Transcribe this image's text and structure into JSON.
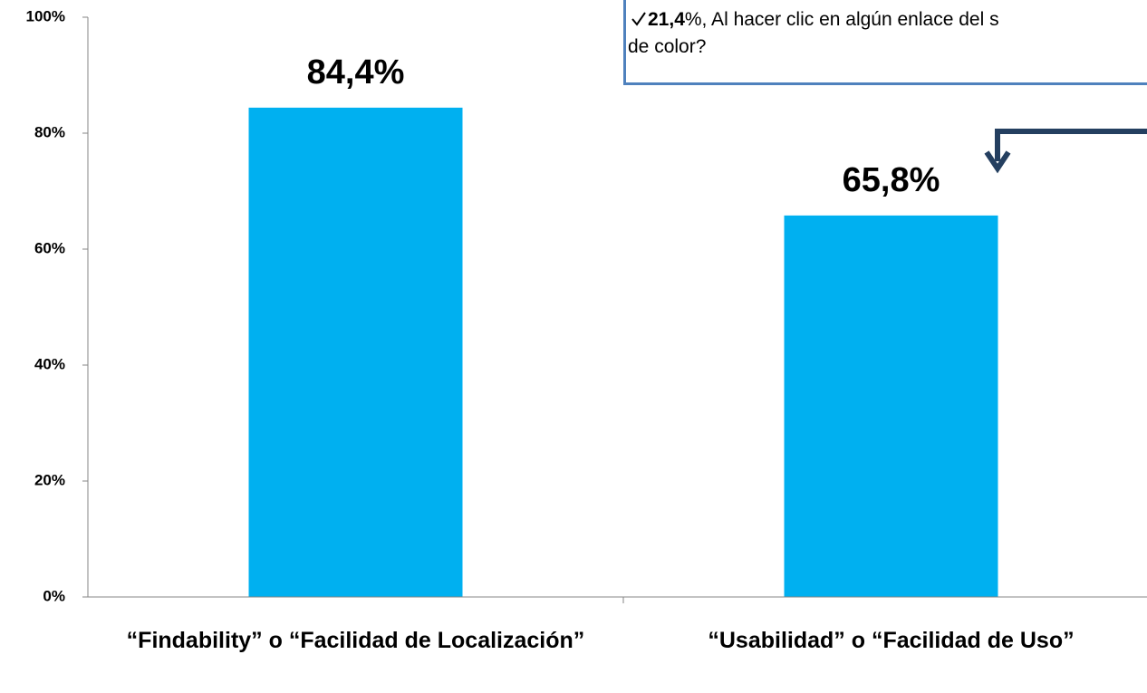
{
  "chart_data": {
    "type": "bar",
    "categories": [
      "“Findability” o “Facilidad de Localización”",
      "“Usabilidad” o “Facilidad de Uso”"
    ],
    "values": [
      84.4,
      65.8
    ],
    "value_labels": [
      "84,4%",
      "65,8%"
    ],
    "color": "#00b0f0",
    "ylim": [
      0,
      100
    ],
    "yticks": [
      {
        "value": 0,
        "label": "0%"
      },
      {
        "value": 20,
        "label": "20%"
      },
      {
        "value": 40,
        "label": "40%"
      },
      {
        "value": 60,
        "label": "60%"
      },
      {
        "value": 80,
        "label": "80%"
      },
      {
        "value": 100,
        "label": "100%"
      }
    ],
    "grid": false,
    "annotation": {
      "bold": "21,4",
      "line1": "%, Al hacer clic en algún enlace del s",
      "line2": "de color?"
    }
  }
}
